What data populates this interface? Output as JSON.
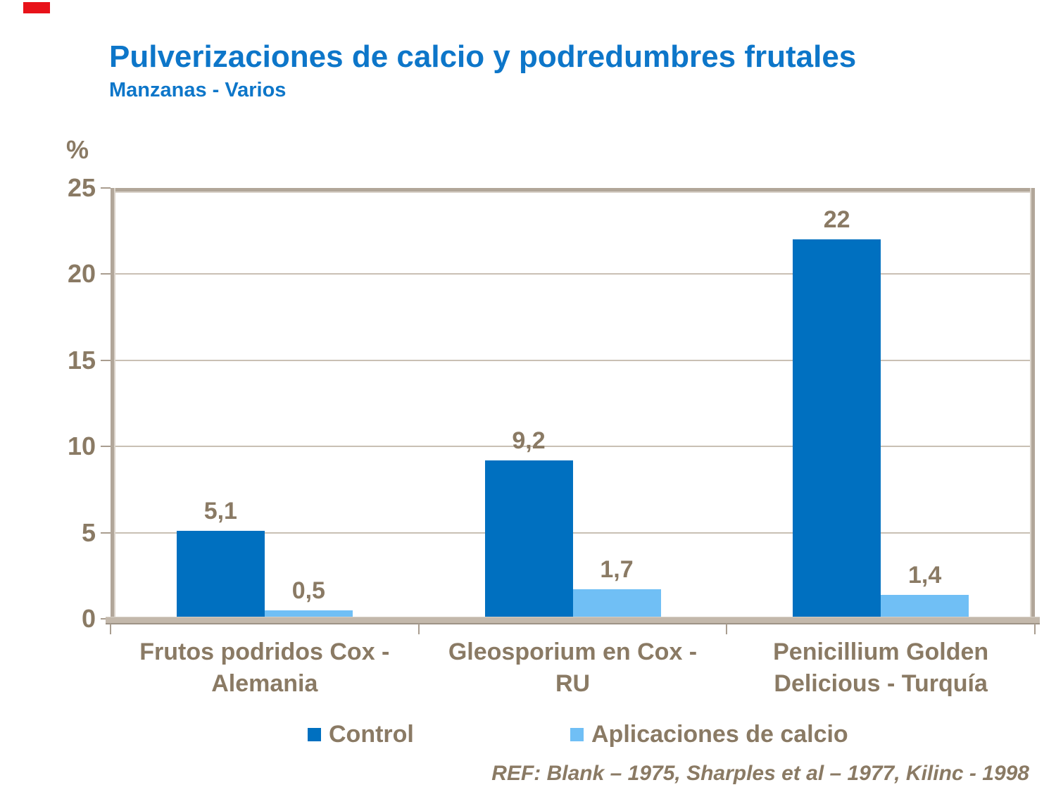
{
  "header": {
    "title": "Pulverizaciones de calcio y podredumbres frutales",
    "subtitle": "Manzanas - Varios"
  },
  "chart_data": {
    "type": "bar",
    "title": "Pulverizaciones de calcio y podredumbres frutales",
    "subtitle": "Manzanas - Varios",
    "xlabel": "",
    "ylabel": "%",
    "ylim": [
      0,
      25
    ],
    "yticks": [
      0,
      5,
      10,
      15,
      20,
      25
    ],
    "grid": true,
    "legend_position": "bottom",
    "categories": [
      "Frutos podridos Cox - Alemania",
      "Gleosporium en Cox - RU",
      "Penicillium Golden Delicious - Turquía"
    ],
    "categories_lines": [
      [
        "Frutos podridos Cox -",
        "Alemania"
      ],
      [
        "Gleosporium en Cox -",
        "RU"
      ],
      [
        "Penicillium Golden",
        "Delicious - Turquía"
      ]
    ],
    "series": [
      {
        "name": "Control",
        "color": "#0070c0",
        "values": [
          5.1,
          9.2,
          22
        ],
        "labels": [
          "5,1",
          "9,2",
          "22"
        ]
      },
      {
        "name": "Aplicaciones de calcio",
        "color": "#70bff5",
        "values": [
          0.5,
          1.7,
          1.4
        ],
        "labels": [
          "0,5",
          "1,7",
          "1,4"
        ]
      }
    ]
  },
  "footer": {
    "text": "REF: Blank – 1975, Sharples et al – 1977, Kilinc - 1998"
  },
  "colors": {
    "title_blue": "#0d76c9",
    "text_taupe": "#8a7a64",
    "frame": "#b1a699",
    "grid": "#c9c0b4",
    "baseline": "#c3b8ab",
    "control_blue": "#0070c0",
    "calcium_blue": "#70bff5",
    "marker_red": "#e81219"
  }
}
